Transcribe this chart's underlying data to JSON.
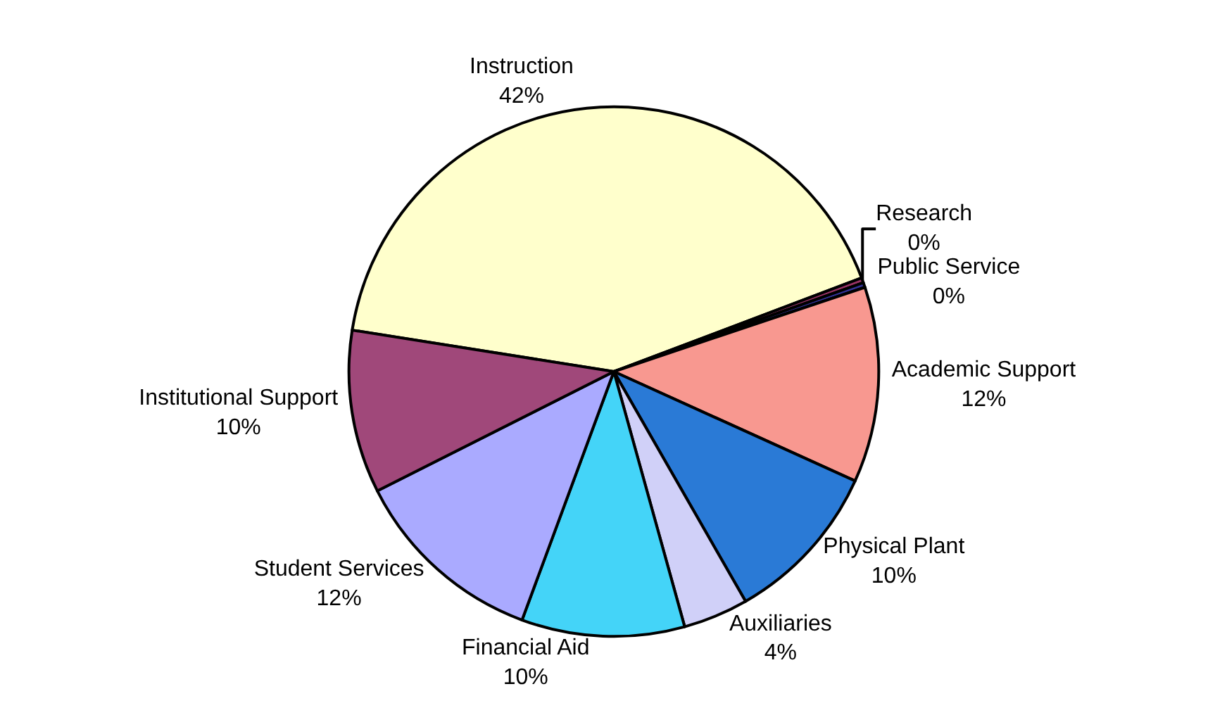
{
  "chart_data": {
    "type": "pie",
    "categories": [
      "Instruction",
      "Research",
      "Public Service",
      "Academic Support",
      "Physical Plant",
      "Auxiliaries",
      "Financial Aid",
      "Student Services",
      "Institutional Support"
    ],
    "values": [
      42,
      0.3,
      0.3,
      12,
      10,
      4,
      10,
      12,
      10
    ],
    "value_labels": [
      "42%",
      "0%",
      "0%",
      "12%",
      "10%",
      "4%",
      "10%",
      "12%",
      "10%"
    ],
    "colors": [
      "#ffffcc",
      "#993366",
      "#333399",
      "#f89890",
      "#2a7ad6",
      "#d0d0f8",
      "#44d4f8",
      "#aaaaff",
      "#a0487a"
    ],
    "legend": false
  }
}
